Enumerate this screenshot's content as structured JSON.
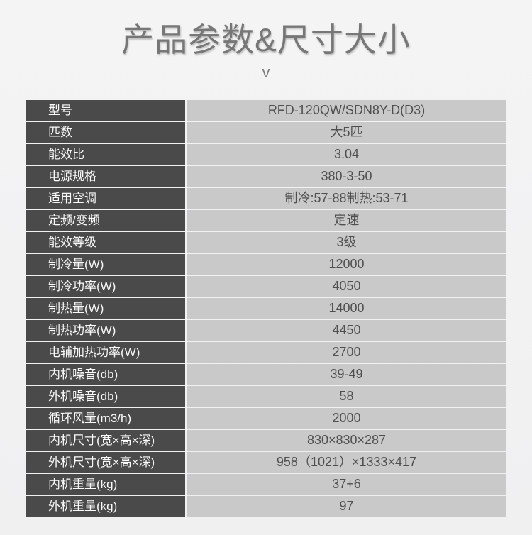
{
  "header": {
    "title": "产品参数&尺寸大小",
    "chevron": "v"
  },
  "table": {
    "rows": [
      {
        "label": "型号",
        "value": "RFD-120QW/SDN8Y-D(D3)"
      },
      {
        "label": "匹数",
        "value": "大5匹"
      },
      {
        "label": "能效比",
        "value": "3.04"
      },
      {
        "label": "电源规格",
        "value": "380-3-50"
      },
      {
        "label": "适用空调",
        "value": "制冷:57-88制热:53-71"
      },
      {
        "label": "定频/变频",
        "value": "定速"
      },
      {
        "label": "能效等级",
        "value": "3级"
      },
      {
        "label": "制冷量(W)",
        "value": "12000"
      },
      {
        "label": "制冷功率(W)",
        "value": "4050"
      },
      {
        "label": "制热量(W)",
        "value": "14000"
      },
      {
        "label": "制热功率(W)",
        "value": "4450"
      },
      {
        "label": "电辅加热功率(W)",
        "value": "2700"
      },
      {
        "label": "内机噪音(db)",
        "value": "39-49"
      },
      {
        "label": "外机噪音(db)",
        "value": "58"
      },
      {
        "label": "循环风量(m3/h)",
        "value": "2000"
      },
      {
        "label": "内机尺寸(宽×高×深)",
        "value": "830×830×287"
      },
      {
        "label": "外机尺寸(宽×高×深)",
        "value": "958（1021）×1333×417"
      },
      {
        "label": "内机重量(kg)",
        "value": "37+6"
      },
      {
        "label": "外机重量(kg)",
        "value": "97"
      }
    ]
  },
  "colors": {
    "page_bg_top": "#f4f4f5",
    "page_bg_bottom": "#f0f0f1",
    "title_text": "#777777",
    "chevron": "#7d7d7d",
    "label_bg": "#4a4a4a",
    "label_text": "#fafafa",
    "value_bg": "#c9c9c9",
    "value_text": "#4f4f4f"
  }
}
